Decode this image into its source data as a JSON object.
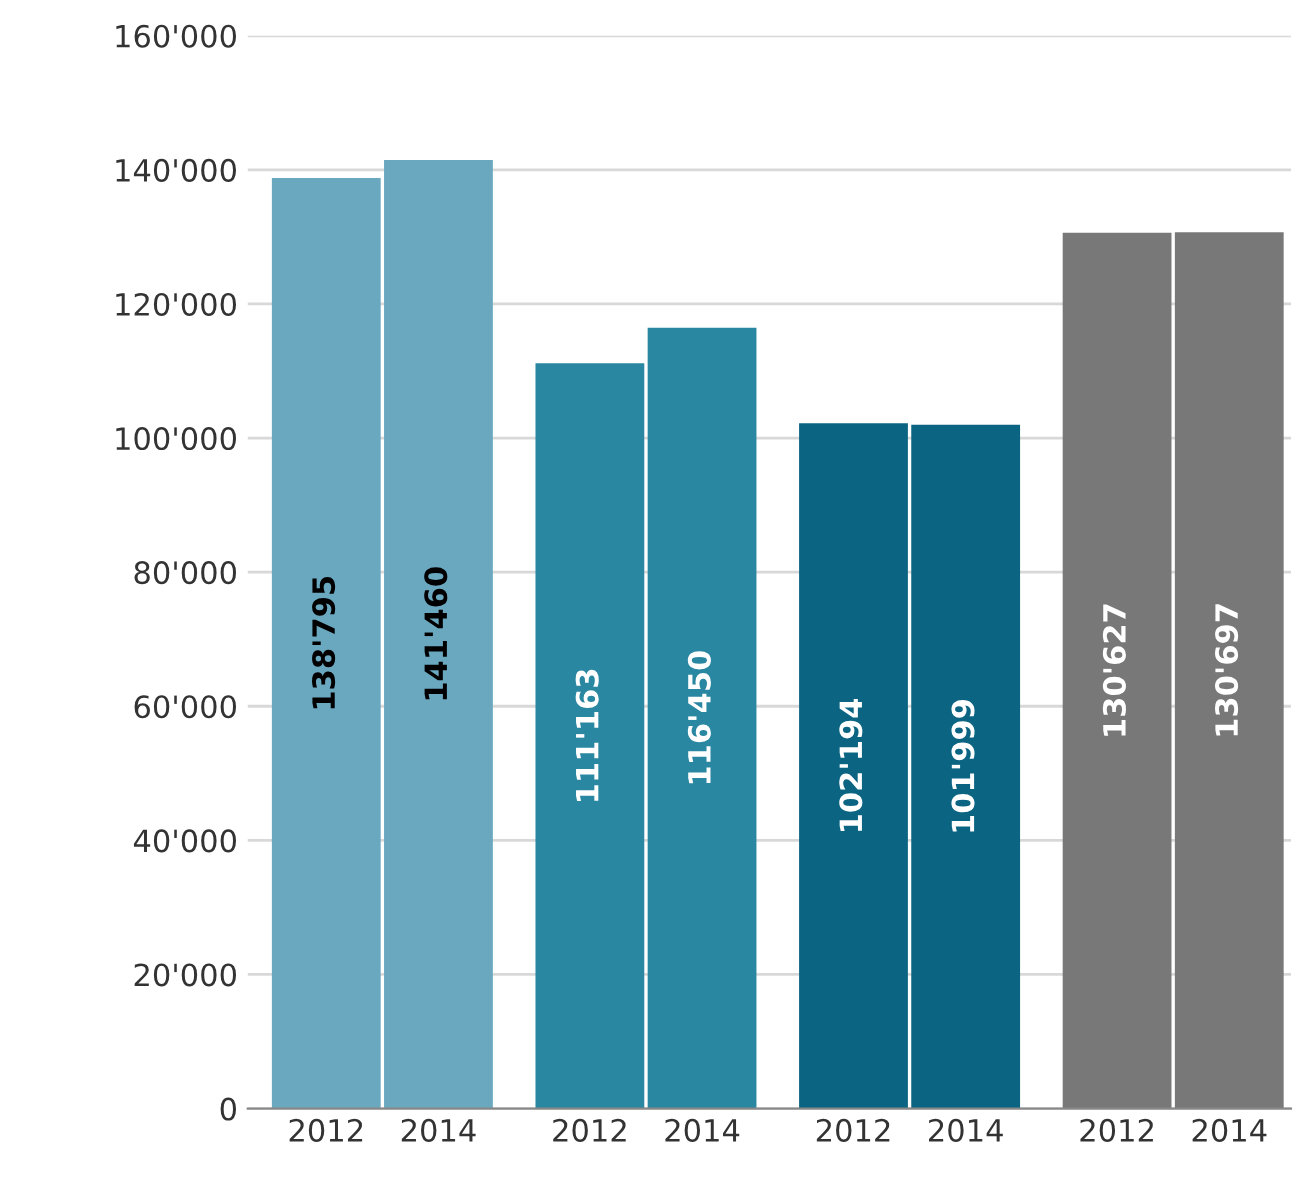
{
  "chart_data": {
    "type": "bar",
    "categories": [
      "2012",
      "2014",
      "2012",
      "2014",
      "2012",
      "2014",
      "2012",
      "2014"
    ],
    "values": [
      138795,
      141460,
      111163,
      116450,
      102194,
      101999,
      130627,
      130697
    ],
    "value_labels": [
      "138'795",
      "141'460",
      "111'163",
      "116'450",
      "102'194",
      "101'999",
      "130'627",
      "130'697"
    ],
    "colors": [
      "#6aa8c0",
      "#6aa8c0",
      "#2a87a2",
      "#2a87a2",
      "#0a6482",
      "#0a6482",
      "#787878",
      "#787878"
    ],
    "ylim": [
      0,
      160000
    ],
    "yticks": [
      {
        "value": 0,
        "label": "0"
      },
      {
        "value": 20000,
        "label": "20'000"
      },
      {
        "value": 40000,
        "label": "40'000"
      },
      {
        "value": 60000,
        "label": "60'000"
      },
      {
        "value": 80000,
        "label": "80'000"
      },
      {
        "value": 100000,
        "label": "100'000"
      },
      {
        "value": 120000,
        "label": "120'000"
      },
      {
        "value": 140000,
        "label": "140'000"
      },
      {
        "value": 160000,
        "label": "160'000"
      }
    ],
    "grid": "y"
  }
}
